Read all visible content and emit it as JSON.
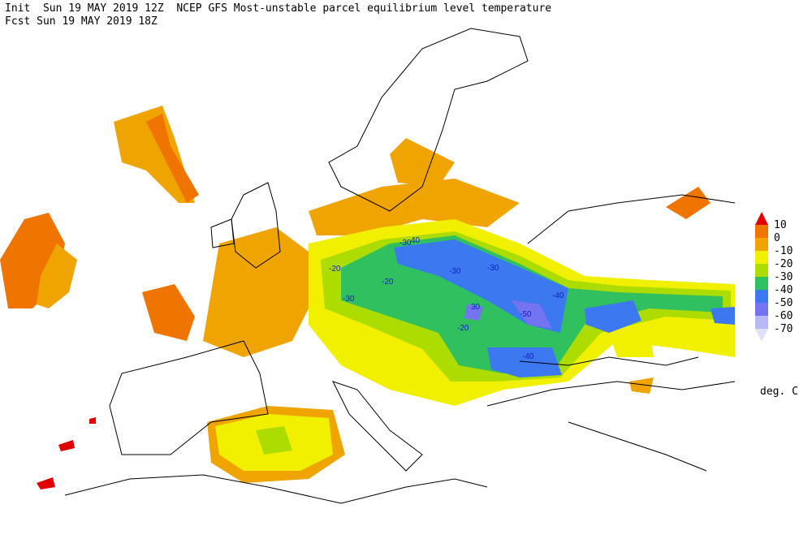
{
  "header": {
    "line1": "Init  Sun 19 MAY 2019 12Z  NCEP GFS Most-unstable parcel equilibrium level temperature",
    "line2": "Fcst Sun 19 MAY 2019 18Z"
  },
  "legend": {
    "ticks": [
      10,
      0,
      -10,
      -20,
      -30,
      -40,
      -50,
      -60,
      -70
    ],
    "top_arrow_color": "#e00000",
    "colors": [
      "#f07400",
      "#f0a400",
      "#f0f000",
      "#acdc00",
      "#30c060",
      "#3c78f0",
      "#7474f0",
      "#b8b8f8"
    ],
    "bottom_arrow_color": "#e0e0fc",
    "unit": "deg. C"
  },
  "contour_labels": [
    "-30",
    "40",
    "-20",
    "-30",
    "-30",
    "-20",
    "-30",
    "-40",
    "-50",
    "30",
    "-20",
    "-40"
  ]
}
